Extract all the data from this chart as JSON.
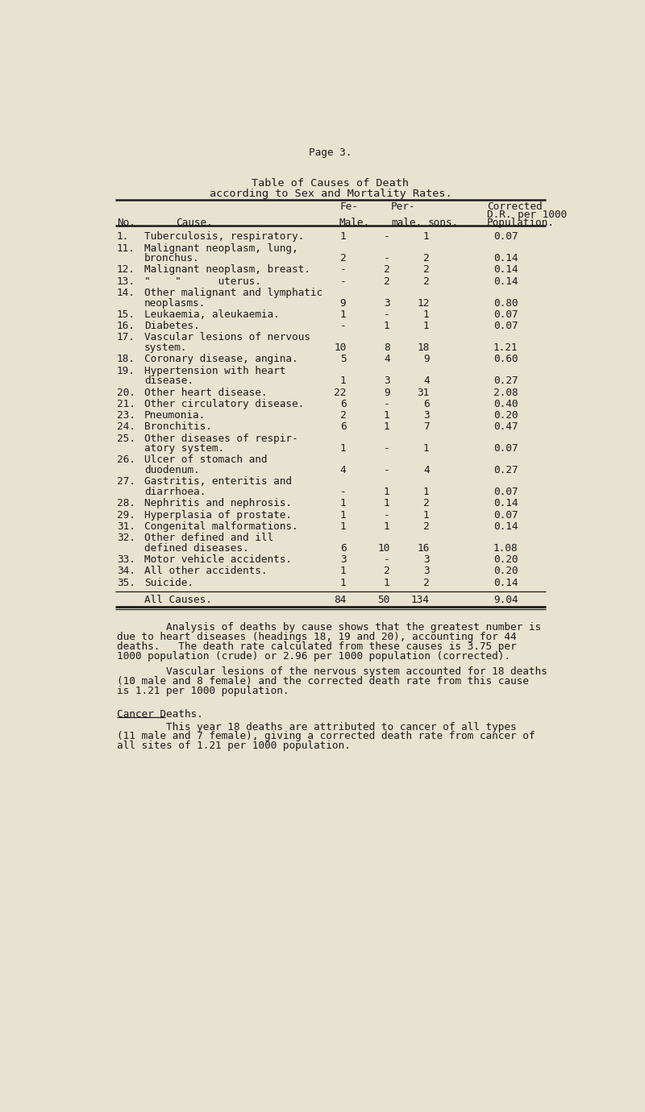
{
  "page_header": "Page 3.",
  "table_title_line1": "Table of Causes of Death",
  "table_title_line2": "according to Sex and Mortality Rates.",
  "bg_color": "#e8e3d0",
  "text_color": "#1a1a1a",
  "font_size": 9.2,
  "rows": [
    [
      "1.",
      "Tuberculosis, respiratory.",
      "",
      "1",
      "-",
      "1",
      "0.07"
    ],
    [
      "11.",
      "Malignant neoplasm, lung,",
      "bronchus.",
      "2",
      "-",
      "2",
      "0.14"
    ],
    [
      "12.",
      "Malignant neoplasm, breast.",
      "",
      "-",
      "2",
      "2",
      "0.14"
    ],
    [
      "13.",
      "\"    \"      uterus.",
      "",
      "-",
      "2",
      "2",
      "0.14"
    ],
    [
      "14.",
      "Other malignant and lymphatic",
      "neoplasms.",
      "9",
      "3",
      "12",
      "0.80"
    ],
    [
      "15.",
      "Leukaemia, aleukaemia.",
      "",
      "1",
      "-",
      "1",
      "0.07"
    ],
    [
      "16.",
      "Diabetes.",
      "",
      "-",
      "1",
      "1",
      "0.07"
    ],
    [
      "17.",
      "Vascular lesions of nervous",
      "system.",
      "10",
      "8",
      "18",
      "1.21"
    ],
    [
      "18.",
      "Coronary disease, angina.",
      "",
      "5",
      "4",
      "9",
      "0.60"
    ],
    [
      "19.",
      "Hypertension with heart",
      "disease.",
      "1",
      "3",
      "4",
      "0.27"
    ],
    [
      "20.",
      "Other heart disease.",
      "",
      "22",
      "9",
      "31",
      "2.08"
    ],
    [
      "21.",
      "Other circulatory disease.",
      "",
      "6",
      "-",
      "6",
      "0.40"
    ],
    [
      "23.",
      "Pneumonia.",
      "",
      "2",
      "1",
      "3",
      "0.20"
    ],
    [
      "24.",
      "Bronchitis.",
      "",
      "6",
      "1",
      "7",
      "0.47"
    ],
    [
      "25.",
      "Other diseases of respir-",
      "atory system.",
      "1",
      "-",
      "1",
      "0.07"
    ],
    [
      "26.",
      "Ulcer of stomach and",
      "duodenum.",
      "4",
      "-",
      "4",
      "0.27"
    ],
    [
      "27.",
      "Gastritis, enteritis and",
      "diarrhoea.",
      "-",
      "1",
      "1",
      "0.07"
    ],
    [
      "28.",
      "Nephritis and nephrosis.",
      "",
      "1",
      "1",
      "2",
      "0.14"
    ],
    [
      "29.",
      "Hyperplasia of prostate.",
      "",
      "1",
      "-",
      "1",
      "0.07"
    ],
    [
      "31.",
      "Congenital malformations.",
      "",
      "1",
      "1",
      "2",
      "0.14"
    ],
    [
      "32.",
      "Other defined and ill",
      "defined diseases.",
      "6",
      "10",
      "16",
      "1.08"
    ],
    [
      "33.",
      "Motor vehicle accidents.",
      "",
      "3",
      "-",
      "3",
      "0.20"
    ],
    [
      "34.",
      "All other accidents.",
      "",
      "1",
      "2",
      "3",
      "0.20"
    ],
    [
      "35.",
      "Suicide.",
      "",
      "1",
      "1",
      "2",
      "0.14"
    ]
  ],
  "paragraph1_lines": [
    "        Analysis of deaths by cause shows that the greatest number is",
    "due to heart diseases (headings 18, 19 and 20), accounting for 44",
    "deaths.   The death rate calculated from these causes is 3.75 per",
    "1000 population (crude) or 2.96 per 1000 population (corrected)."
  ],
  "paragraph2_lines": [
    "        Vascular lesions of the nervous system accounted for 18 deaths",
    "(10 male and 8 female) and the corrected death rate from this cause",
    "is 1.21 per 1000 population."
  ],
  "section_heading": "Cancer Deaths.",
  "paragraph3_lines": [
    "        This year 18 deaths are attributed to cancer of all types",
    "(11 male and 7 female), giving a corrected death rate from cancer of",
    "all sites of 1.21 per 1000 population."
  ]
}
